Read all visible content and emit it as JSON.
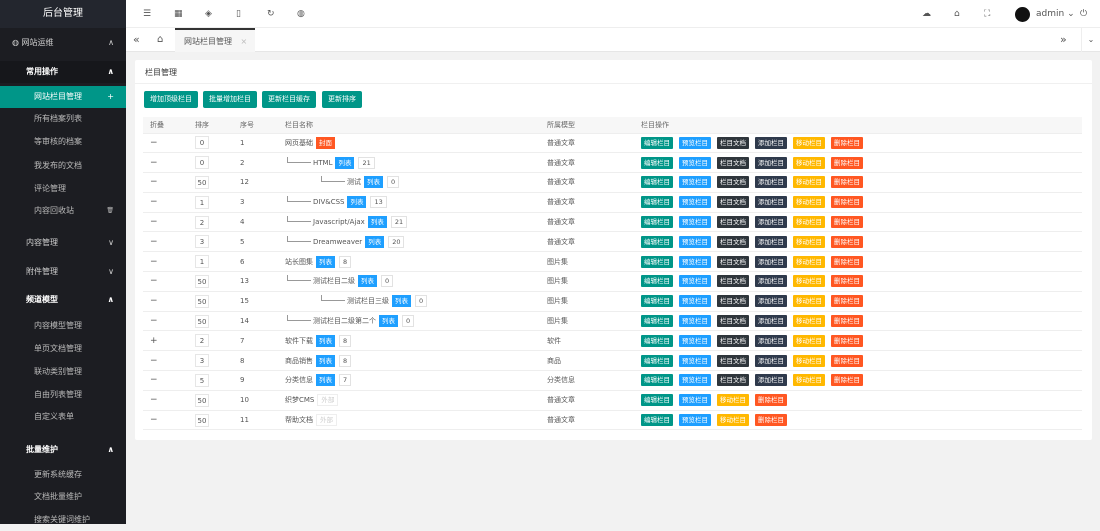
{
  "app_title": "后台管理",
  "colors": {
    "primary": "#009688",
    "blue": "#1e9fff",
    "dark": "#2f363c",
    "navy": "#2f3a4c",
    "yellow": "#ffb800",
    "red": "#ff5722"
  },
  "sidebar": [
    {
      "label": "网站运维",
      "kind": "l1",
      "icon": "globe-icon",
      "arrow": "^"
    },
    {
      "label": "常用操作",
      "kind": "grp",
      "arrow": "^"
    },
    {
      "label": "网站栏目管理",
      "kind": "l2 active",
      "arrow": "+"
    },
    {
      "label": "所有档案列表",
      "kind": "l2"
    },
    {
      "label": "等审核的档案",
      "kind": "l2"
    },
    {
      "label": "我发布的文档",
      "kind": "l2"
    },
    {
      "label": "评论管理",
      "kind": "l2"
    },
    {
      "label": "内容回收站",
      "kind": "l2",
      "arrow": "🗑"
    },
    {
      "label": "内容管理",
      "kind": "l1",
      "arrow": "⌄"
    },
    {
      "label": "附件管理",
      "kind": "l1",
      "arrow": "⌄"
    },
    {
      "label": "频道模型",
      "kind": "l1b",
      "arrow": "^"
    },
    {
      "label": "内容模型管理",
      "kind": "l2"
    },
    {
      "label": "单页文档管理",
      "kind": "l2"
    },
    {
      "label": "联动类别管理",
      "kind": "l2"
    },
    {
      "label": "自由列表管理",
      "kind": "l2"
    },
    {
      "label": "自定义表单",
      "kind": "l2"
    },
    {
      "label": "批量维护",
      "kind": "l1b",
      "arrow": "^"
    },
    {
      "label": "更新系统缓存",
      "kind": "l2"
    },
    {
      "label": "文档批量维护",
      "kind": "l2"
    },
    {
      "label": "搜索关键词维护",
      "kind": "l2"
    }
  ],
  "topbar": {
    "user": "admin",
    "icons": [
      "menu-fold-icon",
      "apps-icon",
      "layers-icon",
      "file-icon",
      "refresh-icon",
      "globe-icon"
    ],
    "right_icons": [
      "theme-icon",
      "tag-icon",
      "fullscreen-icon",
      "avatar",
      "power-icon"
    ]
  },
  "tabs": {
    "active": "网站栏目管理"
  },
  "card": {
    "title": "栏目管理",
    "buttons": [
      "增加顶级栏目",
      "批量增加栏目",
      "更新栏目缓存",
      "更新排序"
    ]
  },
  "table": {
    "headers": [
      "折叠",
      "排序",
      "序号",
      "栏目名称",
      "所属模型",
      "栏目操作"
    ],
    "actions_full": [
      "编辑栏目",
      "预览栏目",
      "栏目文档",
      "添加栏目",
      "移动栏目",
      "删除栏目"
    ],
    "actions_ext": [
      "编辑栏目",
      "预览栏目",
      "移动栏目",
      "删除栏目"
    ],
    "rows": [
      {
        "fold": "−",
        "order": "0",
        "id": "1",
        "name": "网页基础",
        "level": 0,
        "tag": "封面",
        "tagType": "cover",
        "count": null,
        "model": "普通文章",
        "ext": false
      },
      {
        "fold": "−",
        "order": "0",
        "id": "2",
        "name": "HTML",
        "level": 1,
        "tag": "列表",
        "tagType": "list",
        "count": "21",
        "model": "普通文章",
        "ext": false
      },
      {
        "fold": "−",
        "order": "50",
        "id": "12",
        "name": "测试",
        "level": 2,
        "tag": "列表",
        "tagType": "list",
        "count": "0",
        "model": "普通文章",
        "ext": false
      },
      {
        "fold": "−",
        "order": "1",
        "id": "3",
        "name": "DIV&CSS",
        "level": 1,
        "tag": "列表",
        "tagType": "list",
        "count": "13",
        "model": "普通文章",
        "ext": false
      },
      {
        "fold": "−",
        "order": "2",
        "id": "4",
        "name": "Javascript/Ajax",
        "level": 1,
        "tag": "列表",
        "tagType": "list",
        "count": "21",
        "model": "普通文章",
        "ext": false
      },
      {
        "fold": "−",
        "order": "3",
        "id": "5",
        "name": "Dreamweaver",
        "level": 1,
        "tag": "列表",
        "tagType": "list",
        "count": "20",
        "model": "普通文章",
        "ext": false
      },
      {
        "fold": "−",
        "order": "1",
        "id": "6",
        "name": "站长图集",
        "level": 0,
        "tag": "列表",
        "tagType": "list",
        "count": "8",
        "model": "图片集",
        "ext": false
      },
      {
        "fold": "−",
        "order": "50",
        "id": "13",
        "name": "测试栏目二级",
        "level": 1,
        "tag": "列表",
        "tagType": "list",
        "count": "0",
        "model": "图片集",
        "ext": false
      },
      {
        "fold": "−",
        "order": "50",
        "id": "15",
        "name": "测试栏目三级",
        "level": 2,
        "tag": "列表",
        "tagType": "list",
        "count": "0",
        "model": "图片集",
        "ext": false
      },
      {
        "fold": "−",
        "order": "50",
        "id": "14",
        "name": "测试栏目二级第二个",
        "level": 1,
        "tag": "列表",
        "tagType": "list",
        "count": "0",
        "model": "图片集",
        "ext": false
      },
      {
        "fold": "+",
        "order": "2",
        "id": "7",
        "name": "软件下载",
        "level": 0,
        "tag": "列表",
        "tagType": "list",
        "count": "8",
        "model": "软件",
        "ext": false
      },
      {
        "fold": "−",
        "order": "3",
        "id": "8",
        "name": "商品销售",
        "level": 0,
        "tag": "列表",
        "tagType": "list",
        "count": "8",
        "model": "商品",
        "ext": false
      },
      {
        "fold": "−",
        "order": "5",
        "id": "9",
        "name": "分类信息",
        "level": 0,
        "tag": "列表",
        "tagType": "list",
        "count": "7",
        "model": "分类信息",
        "ext": false
      },
      {
        "fold": "−",
        "order": "50",
        "id": "10",
        "name": "织梦CMS",
        "level": 0,
        "tag": "外部",
        "tagType": "ext",
        "count": null,
        "model": "普通文章",
        "ext": true
      },
      {
        "fold": "−",
        "order": "50",
        "id": "11",
        "name": "帮助文档",
        "level": 0,
        "tag": "外部",
        "tagType": "ext",
        "count": null,
        "model": "普通文章",
        "ext": true
      }
    ]
  }
}
